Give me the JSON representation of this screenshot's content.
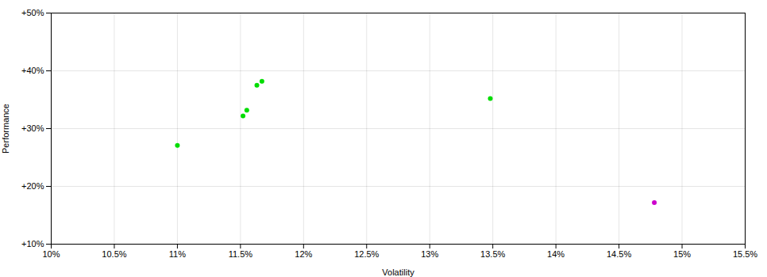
{
  "chart_data": {
    "type": "scatter",
    "xlabel": "Volatility",
    "ylabel": "Performance",
    "xlim": [
      0.1,
      0.155
    ],
    "ylim": [
      0.1,
      0.5
    ],
    "xticks": [
      {
        "value": 0.1,
        "label": "10%"
      },
      {
        "value": 0.105,
        "label": "10.5%"
      },
      {
        "value": 0.11,
        "label": "11%"
      },
      {
        "value": 0.115,
        "label": "11.5%"
      },
      {
        "value": 0.12,
        "label": "12%"
      },
      {
        "value": 0.125,
        "label": "12.5%"
      },
      {
        "value": 0.13,
        "label": "13%"
      },
      {
        "value": 0.135,
        "label": "13.5%"
      },
      {
        "value": 0.14,
        "label": "14%"
      },
      {
        "value": 0.145,
        "label": "14.5%"
      },
      {
        "value": 0.15,
        "label": "15%"
      },
      {
        "value": 0.155,
        "label": "15.5%"
      }
    ],
    "yticks": [
      {
        "value": 0.1,
        "label": "+10%"
      },
      {
        "value": 0.2,
        "label": "+20%"
      },
      {
        "value": 0.3,
        "label": "+30%"
      },
      {
        "value": 0.4,
        "label": "+40%"
      },
      {
        "value": 0.5,
        "label": "+50%"
      }
    ],
    "grid": true,
    "series": [
      {
        "color": "#00dd00",
        "x": [
          0.11,
          0.1152,
          0.1155,
          0.1163,
          0.1167,
          0.1348
        ],
        "values": [
          0.271,
          0.322,
          0.332,
          0.375,
          0.382,
          0.352
        ]
      },
      {
        "color": "#cc00cc",
        "x": [
          0.1478
        ],
        "values": [
          0.172
        ]
      }
    ]
  }
}
